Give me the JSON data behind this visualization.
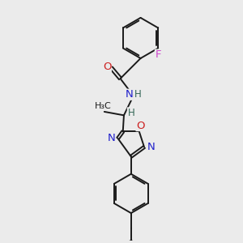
{
  "background_color": "#ebebeb",
  "bond_color": "#1a1a1a",
  "N_color": "#2020cc",
  "O_color": "#cc2020",
  "F_color": "#cc44cc",
  "H_color": "#336655",
  "label_fontsize": 8.5,
  "figsize": [
    3.0,
    3.0
  ],
  "dpi": 100,
  "xlim": [
    0,
    10
  ],
  "ylim": [
    0,
    10
  ]
}
